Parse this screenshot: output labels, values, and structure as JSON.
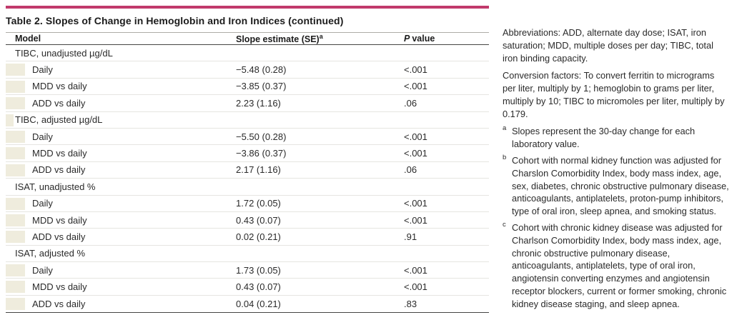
{
  "colors": {
    "top_rule": "#c13a6b",
    "indent_block": "#efecdd",
    "dark_rule": "#454543",
    "light_row_line": "#e6e5e1"
  },
  "table": {
    "title": "Table 2. Slopes of Change in Hemoglobin and Iron Indices (continued)",
    "columns": {
      "model": "Model",
      "slope": "Slope estimate (SE)",
      "slope_sup": "a",
      "p_italic": "P",
      "p_rest": "value"
    },
    "rows": [
      {
        "type": "section",
        "model": "TIBC, unadjusted µg/dL"
      },
      {
        "type": "data",
        "model": "Daily",
        "slope": "−5.48 (0.28)",
        "p": "<.001"
      },
      {
        "type": "data",
        "model": "MDD vs daily",
        "slope": "−3.85 (0.37)",
        "p": "<.001"
      },
      {
        "type": "data",
        "model": "ADD vs daily",
        "slope": "2.23 (1.16)",
        "p": ".06"
      },
      {
        "type": "section",
        "model": "TIBC, adjusted µg/dL"
      },
      {
        "type": "data",
        "model": "Daily",
        "slope": "−5.50 (0.28)",
        "p": "<.001"
      },
      {
        "type": "data",
        "model": "MDD vs daily",
        "slope": "−3.86 (0.37)",
        "p": "<.001"
      },
      {
        "type": "data",
        "model": "ADD vs daily",
        "slope": "2.17 (1.16)",
        "p": ".06"
      },
      {
        "type": "section",
        "model": "ISAT, unadjusted %"
      },
      {
        "type": "data",
        "model": "Daily",
        "slope": "1.72 (0.05)",
        "p": "<.001"
      },
      {
        "type": "data",
        "model": "MDD vs daily",
        "slope": "0.43 (0.07)",
        "p": "<.001"
      },
      {
        "type": "data",
        "model": "ADD vs daily",
        "slope": "0.02 (0.21)",
        "p": ".91"
      },
      {
        "type": "section",
        "model": "ISAT, adjusted %"
      },
      {
        "type": "data",
        "model": "Daily",
        "slope": "1.73 (0.05)",
        "p": "<.001"
      },
      {
        "type": "data",
        "model": "MDD vs daily",
        "slope": "0.43 (0.07)",
        "p": "<.001"
      },
      {
        "type": "data",
        "model": "ADD vs daily",
        "slope": "0.04 (0.21)",
        "p": ".83"
      }
    ]
  },
  "notes": {
    "abbreviations": "Abbreviations: ADD, alternate day dose; ISAT, iron saturation; MDD, multiple doses per day; TIBC, total iron binding capacity.",
    "conversion": "Conversion factors: To convert ferritin to micrograms per liter, multiply by 1; hemoglobin to grams per liter, multiply by 10; TIBC to micromoles per liter, multiply by 0.179.",
    "footnotes": [
      {
        "marker": "a",
        "text": "Slopes represent the 30-day change for each laboratory value."
      },
      {
        "marker": "b",
        "text": "Cohort with normal kidney function was adjusted for Charslon Comorbidity Index, body mass index, age, sex, diabetes, chronic obstructive pulmonary disease, anticoagulants, antiplatelets, proton-pump inhibitors, type of oral iron, sleep apnea, and smoking status."
      },
      {
        "marker": "c",
        "text": "Cohort with chronic kidney disease was adjusted for Charlson Comorbidity Index, body mass index, age, chronic obstructive pulmonary disease, anticoagulants, antiplatelets, type of oral iron, angiotensin converting enzymes and angiotensin receptor blockers, current or former smoking, chronic kidney disease staging, and sleep apnea."
      }
    ]
  }
}
